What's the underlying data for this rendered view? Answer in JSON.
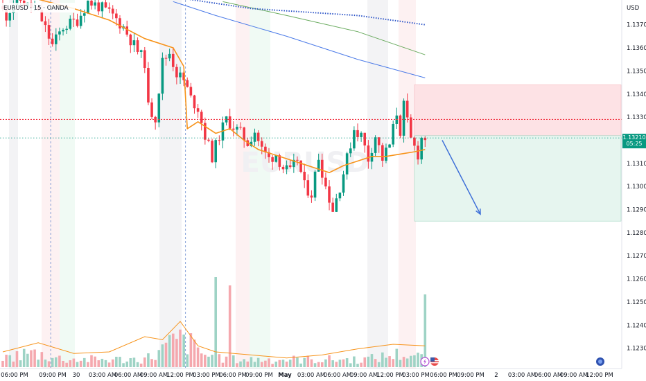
{
  "header": {
    "title": "EURUSD · 15 · OANDA",
    "currency": "USD"
  },
  "watermark": {
    "text": "EURUSD"
  },
  "price_badge": {
    "price": "1.13210",
    "countdown": "05:25",
    "color": "#089981"
  },
  "colors": {
    "up": "#089981",
    "down": "#f23645",
    "ema_fast": "#f7931a",
    "ema_mid": "#4c7be8",
    "ema_slow": "#6aab5f",
    "ema_dotted": "#2d55c8",
    "target_arrow": "#3d6fd8",
    "stop_zone": "#fde2e5",
    "target_zone": "#e6f5ef"
  },
  "icons": {
    "lightning": "lightning-icon",
    "flag": "us-flag-icon",
    "replay": "replay-icon"
  },
  "chart_data": {
    "type": "candlestick",
    "symbol": "EURUSD",
    "timeframe": "15",
    "source": "OANDA",
    "ylim": [
      1.1226,
      1.1378
    ],
    "y_ticks": [
      "1.13700",
      "1.13600",
      "1.13500",
      "1.13400",
      "1.13300",
      "1.13200",
      "1.13100",
      "1.13000",
      "1.12900",
      "1.12800",
      "1.12700",
      "1.12600",
      "1.12500",
      "1.12400",
      "1.12300"
    ],
    "x_ticks": [
      "06:00 PM",
      "09:00 PM",
      "30",
      "03:00 AM",
      "06:00 AM",
      "09:00 AM",
      "12:00 PM",
      "03:00 PM",
      "06:00 PM",
      "09:00 PM",
      "May",
      "03:00 AM",
      "06:00 AM",
      "09:00 AM",
      "12:00 PM",
      "03:00 PM",
      "06:00 PM",
      "09:00 PM",
      "2",
      "03:00 AM",
      "06:00 AM",
      "09:00 AM",
      "12:00 PM"
    ],
    "price_path": [
      [
        0,
        1.1378
      ],
      [
        2,
        1.1374
      ],
      [
        5,
        1.1382
      ],
      [
        8,
        1.1378
      ],
      [
        10,
        1.1377
      ],
      [
        12,
        1.1372
      ],
      [
        15,
        1.1361
      ],
      [
        18,
        1.1369
      ],
      [
        22,
        1.1372
      ],
      [
        25,
        1.138
      ],
      [
        28,
        1.1378
      ],
      [
        32,
        1.1374
      ],
      [
        35,
        1.1369
      ],
      [
        38,
        1.1361
      ],
      [
        41,
        1.1354
      ],
      [
        42,
        1.1334
      ],
      [
        44,
        1.133
      ],
      [
        46,
        1.1354
      ],
      [
        48,
        1.1358
      ],
      [
        50,
        1.1349
      ],
      [
        52,
        1.1346
      ],
      [
        54,
        1.1338
      ],
      [
        56,
        1.1334
      ],
      [
        58,
        1.1322
      ],
      [
        60,
        1.1313
      ],
      [
        62,
        1.1322
      ],
      [
        64,
        1.1329
      ],
      [
        66,
        1.1326
      ],
      [
        68,
        1.1323
      ],
      [
        70,
        1.1319
      ],
      [
        72,
        1.1324
      ],
      [
        74,
        1.1316
      ],
      [
        76,
        1.1312
      ],
      [
        78,
        1.1314
      ],
      [
        80,
        1.1308
      ],
      [
        82,
        1.1306
      ],
      [
        84,
        1.1312
      ],
      [
        86,
        1.13
      ],
      [
        88,
        1.1297
      ],
      [
        90,
        1.1313
      ],
      [
        92,
        1.13
      ],
      [
        94,
        1.129
      ],
      [
        96,
        1.13
      ],
      [
        98,
        1.1312
      ],
      [
        100,
        1.1325
      ],
      [
        102,
        1.1322
      ],
      [
        104,
        1.1312
      ],
      [
        106,
        1.1322
      ],
      [
        108,
        1.1312
      ],
      [
        110,
        1.1318
      ],
      [
        112,
        1.1332
      ],
      [
        113,
        1.1324
      ],
      [
        114,
        1.1335
      ],
      [
        116,
        1.132
      ],
      [
        118,
        1.1314
      ],
      [
        119,
        1.1321
      ]
    ],
    "ema_fast": [
      [
        0,
        1.1385
      ],
      [
        20,
        1.1377
      ],
      [
        30,
        1.1372
      ],
      [
        40,
        1.1364
      ],
      [
        48,
        1.136
      ],
      [
        51,
        1.1352
      ],
      [
        52,
        1.1325
      ],
      [
        55,
        1.1328
      ],
      [
        60,
        1.1323
      ],
      [
        64,
        1.1325
      ],
      [
        68,
        1.132
      ],
      [
        72,
        1.1316
      ],
      [
        76,
        1.1314
      ],
      [
        80,
        1.1312
      ],
      [
        84,
        1.131
      ],
      [
        88,
        1.1308
      ],
      [
        92,
        1.1306
      ],
      [
        96,
        1.1309
      ],
      [
        100,
        1.1311
      ],
      [
        104,
        1.1313
      ],
      [
        108,
        1.1313
      ],
      [
        112,
        1.1314
      ],
      [
        116,
        1.1315
      ],
      [
        119,
        1.1316
      ]
    ],
    "ema_mid": [
      [
        48,
        1.138
      ],
      [
        60,
        1.1374
      ],
      [
        80,
        1.1365
      ],
      [
        100,
        1.1355
      ],
      [
        119,
        1.1347
      ]
    ],
    "ema_slow": [
      [
        62,
        1.138
      ],
      [
        80,
        1.1374
      ],
      [
        100,
        1.1367
      ],
      [
        119,
        1.1357
      ]
    ],
    "ema_dotted": [
      [
        48,
        1.1382
      ],
      [
        70,
        1.1377
      ],
      [
        100,
        1.1374
      ],
      [
        119,
        1.137
      ]
    ],
    "reference_lines": [
      {
        "name": "entry-level",
        "price": 1.1329,
        "style": "dotted",
        "color": "#f23645"
      },
      {
        "name": "current-price",
        "price": 1.1321,
        "style": "dotted",
        "color": "#089981"
      }
    ],
    "position": {
      "type": "short",
      "entry": 1.1322,
      "stop": 1.1344,
      "target": 1.1285
    },
    "volume": {
      "average": [
        [
          0,
          10
        ],
        [
          10,
          16
        ],
        [
          20,
          9
        ],
        [
          30,
          10
        ],
        [
          40,
          20
        ],
        [
          45,
          18
        ],
        [
          50,
          30
        ],
        [
          55,
          14
        ],
        [
          60,
          10
        ],
        [
          70,
          8
        ],
        [
          80,
          6
        ],
        [
          90,
          8
        ],
        [
          100,
          12
        ],
        [
          110,
          15
        ],
        [
          119,
          14
        ]
      ]
    },
    "vertical_separators": [
      13.5,
      51.5
    ]
  }
}
